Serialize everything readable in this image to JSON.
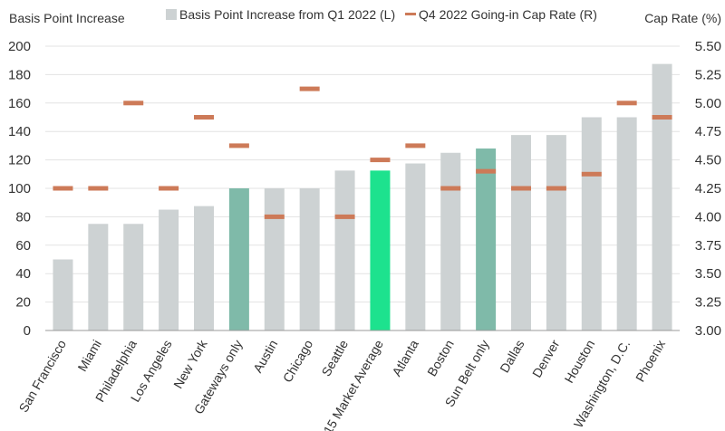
{
  "chart_data": {
    "type": "bar",
    "categories": [
      "San Francisco",
      "Miami",
      "Philadelphia",
      "Los Angeles",
      "New York",
      "Gateways only",
      "Austin",
      "Chicago",
      "Seattle",
      "15 Market Average",
      "Atlanta",
      "Boston",
      "Sun Belt only",
      "Dallas",
      "Denver",
      "Houston",
      "Washington, D.C.",
      "Phoenix"
    ],
    "series": [
      {
        "name": "Basis Point Increase from Q1 2022 (L)",
        "axis": "left",
        "kind": "bar",
        "values": [
          50,
          75,
          75,
          85,
          87.5,
          100,
          100,
          100,
          112.5,
          112.5,
          117.5,
          125,
          128,
          137.5,
          137.5,
          150,
          150,
          187.5
        ]
      },
      {
        "name": "Q4 2022 Going-in Cap Rate (R)",
        "axis": "right",
        "kind": "marker",
        "values": [
          4.25,
          4.25,
          5.0,
          4.25,
          4.875,
          4.625,
          4.0,
          5.125,
          4.0,
          4.5,
          4.625,
          4.25,
          4.4,
          4.25,
          4.25,
          4.375,
          5.0,
          4.875
        ]
      }
    ],
    "highlight": {
      "Gateways only": "#7fbaa9",
      "Sun Belt only": "#7fbaa9",
      "15 Market Average": "#1de28e"
    },
    "colors": {
      "bar": "#cdd2d3",
      "marker": "#cd7a58"
    },
    "ylabel_left": "Basis Point Increase",
    "ylabel_right": "Cap Rate (%)",
    "ylim_left": [
      0,
      200
    ],
    "ylim_right": [
      3.0,
      5.5
    ],
    "yticks_left": [
      "0",
      "20",
      "40",
      "60",
      "80",
      "100",
      "120",
      "140",
      "160",
      "180",
      "200"
    ],
    "yticks_right": [
      "3.00",
      "3.25",
      "3.50",
      "3.75",
      "4.00",
      "4.25",
      "4.50",
      "4.75",
      "5.00",
      "5.25",
      "5.50"
    ],
    "grid": true,
    "legend_placement": "top-center"
  }
}
